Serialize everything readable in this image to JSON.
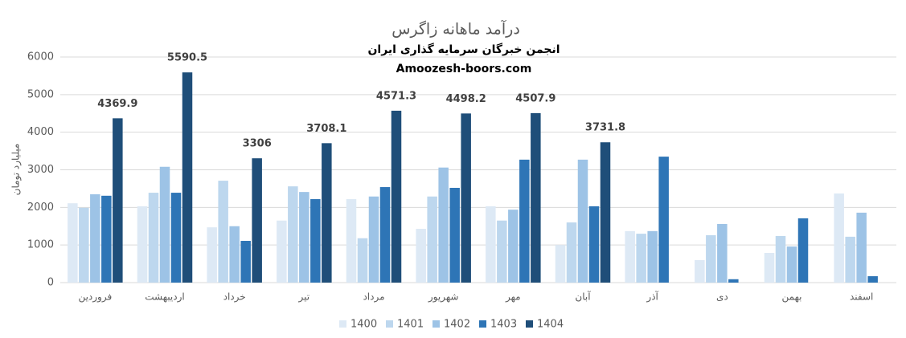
{
  "chart_data": {
    "type": "bar",
    "title": "درآمد ماهانه زاگرس",
    "subtitles": [
      "انجمن خبرگان سرمایه گذاری ایران",
      "Amoozesh-boors.com"
    ],
    "y_label": "میلیارد تومان",
    "categories": [
      "فروردین",
      "اردیبهشت",
      "خرداد",
      "تیر",
      "مرداد",
      "شهریور",
      "مهر",
      "آبان",
      "آذر",
      "دی",
      "بهمن",
      "اسفند"
    ],
    "series": [
      {
        "name": "1400",
        "color": "#dde9f5",
        "values": [
          2110,
          2030,
          1470,
          1650,
          2220,
          1430,
          2030,
          1000,
          1370,
          600,
          790,
          2370
        ]
      },
      {
        "name": "1401",
        "color": "#bdd7ee",
        "values": [
          1990,
          2390,
          2710,
          2560,
          1180,
          2290,
          1650,
          1600,
          1300,
          1260,
          1240,
          1220
        ]
      },
      {
        "name": "1402",
        "color": "#9dc3e6",
        "values": [
          2350,
          3080,
          1500,
          2410,
          2290,
          3060,
          1940,
          3270,
          1370,
          1560,
          960,
          1860
        ]
      },
      {
        "name": "1403",
        "color": "#2e75b6",
        "values": [
          2310,
          2390,
          1110,
          2220,
          2540,
          2520,
          3270,
          2030,
          3350,
          90,
          1710,
          170
        ]
      },
      {
        "name": "1404",
        "color": "#1f4e79",
        "values": [
          4369.9,
          5590.5,
          3306,
          3708.1,
          4571.3,
          4498.2,
          4507.9,
          3731.8,
          null,
          null,
          null,
          null
        ],
        "data_labels": true
      }
    ],
    "ylim": [
      0,
      6000
    ],
    "yticks": [
      0,
      1000,
      2000,
      3000,
      4000,
      5000,
      6000
    ],
    "grid": true,
    "legend": "bottom"
  }
}
